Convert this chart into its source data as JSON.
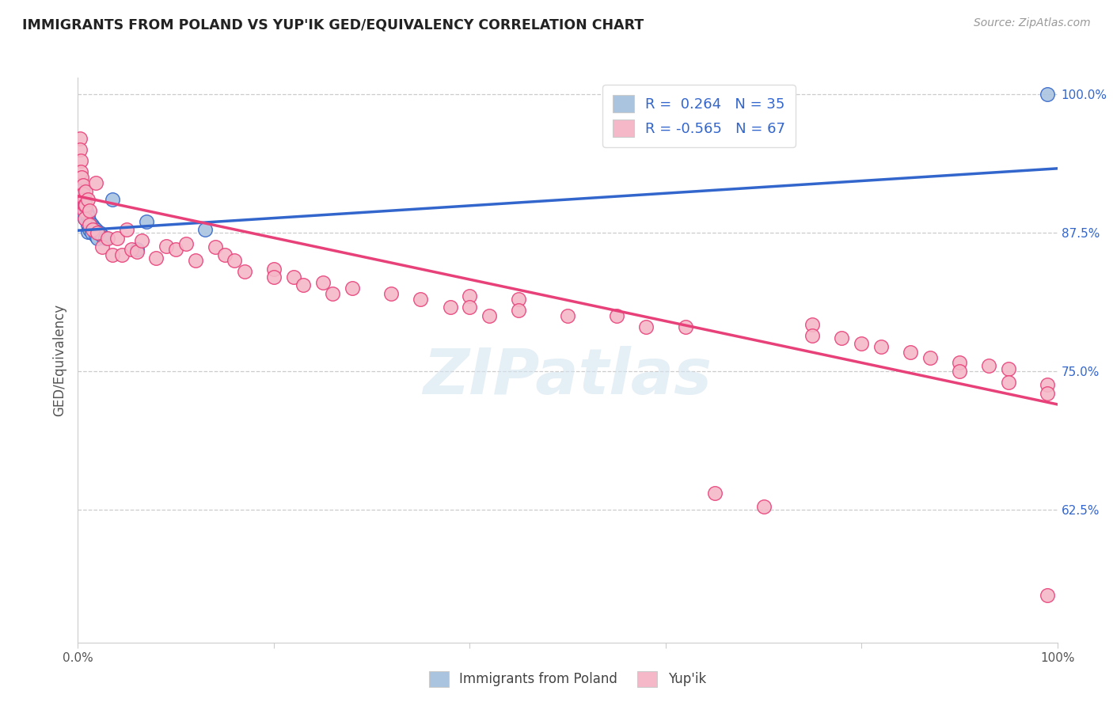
{
  "title": "IMMIGRANTS FROM POLAND VS YUP'IK GED/EQUIVALENCY CORRELATION CHART",
  "source": "Source: ZipAtlas.com",
  "ylabel": "GED/Equivalency",
  "y_ticks": [
    0.625,
    0.75,
    0.875,
    1.0
  ],
  "y_tick_labels": [
    "62.5%",
    "75.0%",
    "87.5%",
    "100.0%"
  ],
  "blue_color": "#aac4e0",
  "pink_color": "#f4b8c8",
  "blue_line_color": "#3366cc",
  "pink_line_color": "#e8417a",
  "background_color": "#ffffff",
  "watermark": "ZIPatlas",
  "scatter_blue": [
    [
      0.003,
      0.91
    ],
    [
      0.004,
      0.905
    ],
    [
      0.005,
      0.915
    ],
    [
      0.005,
      0.9
    ],
    [
      0.005,
      0.893
    ],
    [
      0.006,
      0.908
    ],
    [
      0.006,
      0.898
    ],
    [
      0.006,
      0.89
    ],
    [
      0.007,
      0.902
    ],
    [
      0.007,
      0.895
    ],
    [
      0.007,
      0.888
    ],
    [
      0.008,
      0.898
    ],
    [
      0.008,
      0.888
    ],
    [
      0.009,
      0.893
    ],
    [
      0.009,
      0.885
    ],
    [
      0.01,
      0.89
    ],
    [
      0.01,
      0.882
    ],
    [
      0.01,
      0.876
    ],
    [
      0.012,
      0.885
    ],
    [
      0.012,
      0.878
    ],
    [
      0.014,
      0.882
    ],
    [
      0.014,
      0.875
    ],
    [
      0.016,
      0.88
    ],
    [
      0.018,
      0.878
    ],
    [
      0.018,
      0.872
    ],
    [
      0.02,
      0.876
    ],
    [
      0.02,
      0.87
    ],
    [
      0.022,
      0.875
    ],
    [
      0.025,
      0.872
    ],
    [
      0.028,
      0.87
    ],
    [
      0.035,
      0.905
    ],
    [
      0.06,
      0.86
    ],
    [
      0.07,
      0.885
    ],
    [
      0.13,
      0.878
    ],
    [
      0.99,
      1.0
    ]
  ],
  "scatter_pink": [
    [
      0.002,
      0.96
    ],
    [
      0.002,
      0.95
    ],
    [
      0.003,
      0.94
    ],
    [
      0.003,
      0.93
    ],
    [
      0.004,
      0.925
    ],
    [
      0.005,
      0.918
    ],
    [
      0.005,
      0.91
    ],
    [
      0.006,
      0.905
    ],
    [
      0.006,
      0.895
    ],
    [
      0.007,
      0.9
    ],
    [
      0.007,
      0.888
    ],
    [
      0.008,
      0.912
    ],
    [
      0.008,
      0.9
    ],
    [
      0.01,
      0.905
    ],
    [
      0.012,
      0.895
    ],
    [
      0.012,
      0.882
    ],
    [
      0.015,
      0.878
    ],
    [
      0.018,
      0.92
    ],
    [
      0.02,
      0.875
    ],
    [
      0.025,
      0.862
    ],
    [
      0.03,
      0.87
    ],
    [
      0.035,
      0.855
    ],
    [
      0.04,
      0.87
    ],
    [
      0.045,
      0.855
    ],
    [
      0.05,
      0.878
    ],
    [
      0.055,
      0.86
    ],
    [
      0.06,
      0.858
    ],
    [
      0.065,
      0.868
    ],
    [
      0.08,
      0.852
    ],
    [
      0.09,
      0.863
    ],
    [
      0.1,
      0.86
    ],
    [
      0.11,
      0.865
    ],
    [
      0.12,
      0.85
    ],
    [
      0.14,
      0.862
    ],
    [
      0.15,
      0.855
    ],
    [
      0.16,
      0.85
    ],
    [
      0.17,
      0.84
    ],
    [
      0.2,
      0.842
    ],
    [
      0.2,
      0.835
    ],
    [
      0.22,
      0.835
    ],
    [
      0.23,
      0.828
    ],
    [
      0.25,
      0.83
    ],
    [
      0.26,
      0.82
    ],
    [
      0.28,
      0.825
    ],
    [
      0.32,
      0.82
    ],
    [
      0.35,
      0.815
    ],
    [
      0.38,
      0.808
    ],
    [
      0.4,
      0.818
    ],
    [
      0.4,
      0.808
    ],
    [
      0.42,
      0.8
    ],
    [
      0.45,
      0.815
    ],
    [
      0.45,
      0.805
    ],
    [
      0.5,
      0.8
    ],
    [
      0.55,
      0.8
    ],
    [
      0.58,
      0.79
    ],
    [
      0.62,
      0.79
    ],
    [
      0.65,
      0.64
    ],
    [
      0.7,
      0.628
    ],
    [
      0.75,
      0.792
    ],
    [
      0.75,
      0.782
    ],
    [
      0.78,
      0.78
    ],
    [
      0.8,
      0.775
    ],
    [
      0.82,
      0.772
    ],
    [
      0.85,
      0.767
    ],
    [
      0.87,
      0.762
    ],
    [
      0.9,
      0.758
    ],
    [
      0.9,
      0.75
    ],
    [
      0.93,
      0.755
    ],
    [
      0.95,
      0.752
    ],
    [
      0.95,
      0.74
    ],
    [
      0.99,
      0.738
    ],
    [
      0.99,
      0.73
    ],
    [
      0.99,
      0.548
    ]
  ],
  "blue_line_x": [
    0.0,
    1.0
  ],
  "blue_line_y_start": 0.877,
  "blue_line_y_end": 0.933,
  "pink_line_x": [
    0.0,
    1.0
  ],
  "pink_line_y_start": 0.908,
  "pink_line_y_end": 0.72,
  "xlim": [
    0.0,
    1.0
  ],
  "ylim": [
    0.505,
    1.015
  ]
}
